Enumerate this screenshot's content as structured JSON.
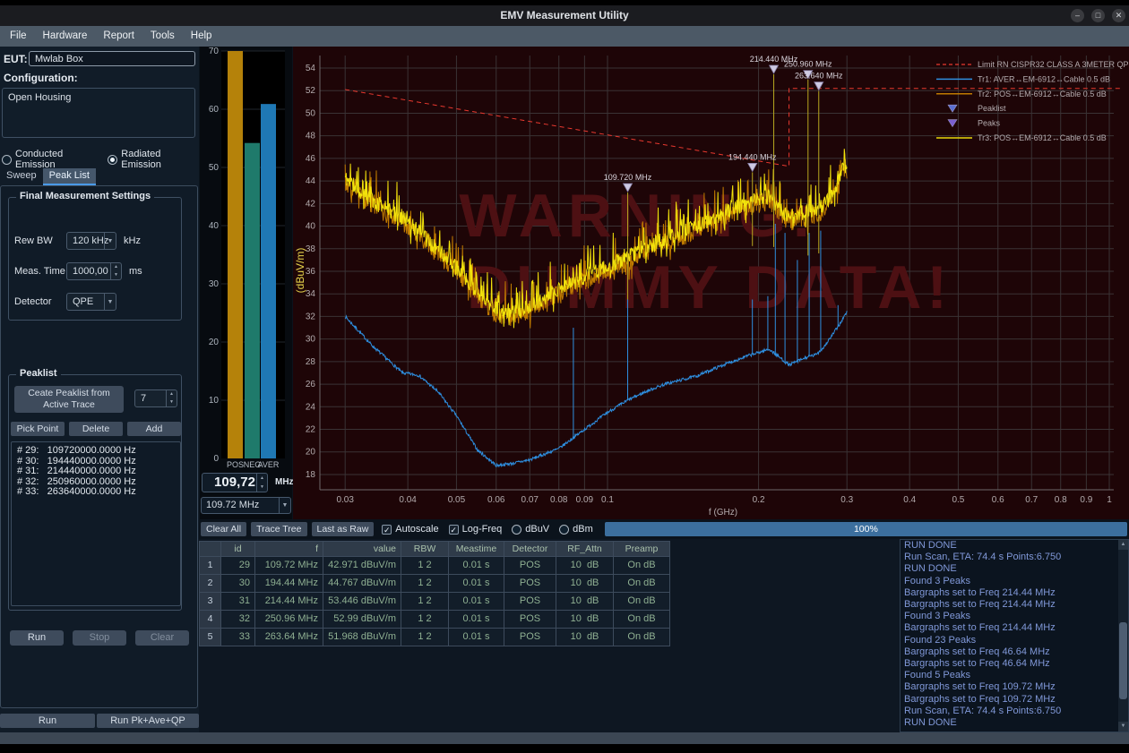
{
  "window": {
    "title": "EMV Measurement Utility",
    "minimize": "–",
    "maximize": "□",
    "close": "✕"
  },
  "menu": {
    "items": [
      "File",
      "Hardware",
      "Report",
      "Tools",
      "Help"
    ]
  },
  "left_panel": {
    "eut_label": "EUT:",
    "eut_value": "Mwlab Box",
    "configuration_label": "Configuration:",
    "configuration_value": "Open Housing",
    "radio_conducted": "Conducted Emission",
    "radio_radiated": "Radiated Emission",
    "radiated_selected": true,
    "tabs": [
      "Sweep",
      "Peak List"
    ],
    "active_tab": "Peak List",
    "final_settings": {
      "title": "Final Measurement Settings",
      "rew_bw_label": "Rew BW",
      "rew_bw_value": "120 kHz",
      "rew_bw_unit": "kHz",
      "meas_time_label": "Meas. Time",
      "meas_time_value": "1000,00",
      "meas_time_unit": "ms",
      "detector_label": "Detector",
      "detector_value": "QPE"
    },
    "peaklist": {
      "title": "Peaklist",
      "create_button": "Ceate Peaklist from\nActive Trace",
      "count_value": "7",
      "pick_point_button": "Pick Point",
      "delete_button": "Delete",
      "add_button": "Add",
      "entries": [
        "# 29:   109720000.0000 Hz",
        "# 30:   194440000.0000 Hz",
        "# 31:   214440000.0000 Hz",
        "# 32:   250960000.0000 Hz",
        "# 33:   263640000.0000 Hz"
      ]
    },
    "run_button": "Run",
    "stop_button": "Stop",
    "clear_button": "Clear",
    "bottom_run_button": "Run",
    "bottom_run_pk_button": "Run Pk+Ave+QP"
  },
  "bargraph": {
    "ymax": 70,
    "yticks": [
      0,
      10,
      20,
      30,
      40,
      50,
      60,
      70
    ],
    "bars": [
      {
        "label": "POS",
        "value": 70,
        "color": "#b5820a"
      },
      {
        "label": "NEG",
        "value": 54.2,
        "color": "#1f7a6b"
      },
      {
        "label": "AVER",
        "value": 60.9,
        "color": "#1f78b4"
      }
    ],
    "freq_spin_value": "109,72",
    "freq_spin_unit": "MHz",
    "freq_dropdown_value": "109.72 MHz"
  },
  "chart_data": {
    "type": "line",
    "xlabel": "f (GHz)",
    "ylabel": "(dBuV/m)",
    "xscale": "log",
    "xlim": [
      0.028,
      1.05
    ],
    "ylim": [
      16.6,
      55.3
    ],
    "xticks": [
      0.03,
      0.04,
      0.05,
      0.06,
      0.07,
      0.08,
      0.09,
      0.1,
      0.2,
      0.3,
      0.4,
      0.5,
      0.6,
      0.7,
      0.8,
      0.9,
      1
    ],
    "yticks": [
      18,
      20,
      22,
      24,
      26,
      28,
      30,
      32,
      34,
      36,
      38,
      40,
      42,
      44,
      46,
      48,
      50,
      52,
      54
    ],
    "watermark_line1": "WARNING:",
    "watermark_line2": "DUMMY DATA!",
    "limit": {
      "label": "Limit RN CISPR32 CLASS A 3METER QP FAR",
      "color": "#e8392f",
      "points_ghz_dbuv": [
        [
          0.03,
          52.1
        ],
        [
          0.23,
          45.3
        ],
        [
          0.23,
          52.2
        ],
        [
          1.05,
          52.2
        ]
      ]
    },
    "series": [
      {
        "name": "Tr1: AVER↔EM-6912↔Cable 0.5 dB",
        "color": "#2e8fe0",
        "noise_db": 0.28,
        "seed": 7,
        "anchors_ghz_dbuv": [
          [
            0.03,
            32
          ],
          [
            0.034,
            29.4
          ],
          [
            0.039,
            27
          ],
          [
            0.042,
            26.8
          ],
          [
            0.046,
            25.3
          ],
          [
            0.05,
            23.2
          ],
          [
            0.055,
            20.2
          ],
          [
            0.06,
            18.8
          ],
          [
            0.065,
            19.0
          ],
          [
            0.07,
            19.3
          ],
          [
            0.08,
            20.3
          ],
          [
            0.09,
            22.0
          ],
          [
            0.1,
            23.5
          ],
          [
            0.11,
            24.6
          ],
          [
            0.12,
            25.4
          ],
          [
            0.13,
            26.0
          ],
          [
            0.15,
            26.7
          ],
          [
            0.17,
            27.7
          ],
          [
            0.19,
            28.5
          ],
          [
            0.2,
            28.8
          ],
          [
            0.21,
            29.1
          ],
          [
            0.22,
            28.4
          ],
          [
            0.23,
            27.7
          ],
          [
            0.25,
            28.4
          ],
          [
            0.26,
            28.6
          ],
          [
            0.27,
            29.3
          ],
          [
            0.28,
            30.3
          ],
          [
            0.29,
            31.3
          ],
          [
            0.3,
            32.4
          ]
        ]
      },
      {
        "name": "Tr2: POS↔EM-6912↔Cable 0.5 dB",
        "color": "#bf7a00",
        "noise_db": 1.7,
        "seed": 3,
        "anchors_ghz_dbuv": [
          [
            0.03,
            43.9
          ],
          [
            0.033,
            42.2
          ],
          [
            0.036,
            41.2
          ],
          [
            0.04,
            40.0
          ],
          [
            0.045,
            37.9
          ],
          [
            0.05,
            36.0
          ],
          [
            0.055,
            33.8
          ],
          [
            0.06,
            32.3
          ],
          [
            0.065,
            31.9
          ],
          [
            0.07,
            32.6
          ],
          [
            0.075,
            33.3
          ],
          [
            0.08,
            34.0
          ],
          [
            0.09,
            35.1
          ],
          [
            0.1,
            36.0
          ],
          [
            0.11,
            36.9
          ],
          [
            0.12,
            37.7
          ],
          [
            0.13,
            38.5
          ],
          [
            0.15,
            39.6
          ],
          [
            0.17,
            40.7
          ],
          [
            0.19,
            41.7
          ],
          [
            0.2,
            42.0
          ],
          [
            0.21,
            42.2
          ],
          [
            0.22,
            41.2
          ],
          [
            0.23,
            40.4
          ],
          [
            0.24,
            40.6
          ],
          [
            0.25,
            41.0
          ],
          [
            0.26,
            41.0
          ],
          [
            0.27,
            41.5
          ],
          [
            0.28,
            42.2
          ],
          [
            0.285,
            42.9
          ],
          [
            0.29,
            43.8
          ],
          [
            0.295,
            44.8
          ],
          [
            0.3,
            44.4
          ]
        ]
      },
      {
        "name": "Tr3: POS↔EM-6912↔Cable 0.5 dB",
        "color": "#f2e20c",
        "noise_db": 1.4,
        "seed": 11,
        "anchors_ghz_dbuv": [
          [
            0.03,
            44.3
          ],
          [
            0.033,
            42.6
          ],
          [
            0.036,
            41.6
          ],
          [
            0.04,
            40.4
          ],
          [
            0.045,
            38.3
          ],
          [
            0.05,
            36.4
          ],
          [
            0.055,
            34.2
          ],
          [
            0.06,
            32.7
          ],
          [
            0.065,
            32.3
          ],
          [
            0.07,
            33.0
          ],
          [
            0.075,
            33.7
          ],
          [
            0.08,
            34.4
          ],
          [
            0.09,
            35.5
          ],
          [
            0.1,
            36.4
          ],
          [
            0.11,
            37.3
          ],
          [
            0.12,
            38.1
          ],
          [
            0.13,
            38.9
          ],
          [
            0.15,
            40.0
          ],
          [
            0.17,
            41.1
          ],
          [
            0.19,
            42.1
          ],
          [
            0.2,
            42.4
          ],
          [
            0.21,
            42.6
          ],
          [
            0.22,
            41.6
          ],
          [
            0.23,
            40.8
          ],
          [
            0.24,
            41.0
          ],
          [
            0.25,
            41.4
          ],
          [
            0.26,
            41.4
          ],
          [
            0.27,
            41.9
          ],
          [
            0.28,
            42.6
          ],
          [
            0.285,
            43.3
          ],
          [
            0.29,
            44.2
          ],
          [
            0.295,
            45.2
          ],
          [
            0.3,
            44.8
          ]
        ]
      }
    ],
    "tr1_spikes_ghz_dbuv": [
      [
        0.0855,
        31
      ],
      [
        0.1097,
        33.5
      ],
      [
        0.1944,
        33.5
      ],
      [
        0.2087,
        33.8
      ],
      [
        0.216,
        40.2
      ],
      [
        0.2258,
        39.4
      ],
      [
        0.239,
        37.0
      ],
      [
        0.2523,
        39.4
      ],
      [
        0.266,
        39.6
      ],
      [
        0.288,
        33.0
      ]
    ],
    "peak_markers": [
      {
        "freq_ghz": 0.10972,
        "label": "109.720 MHz",
        "dbuv": 42.971
      },
      {
        "freq_ghz": 0.19444,
        "label": "194.440 MHz",
        "dbuv": 44.767
      },
      {
        "freq_ghz": 0.21444,
        "label": "214.440 MHz",
        "dbuv": 53.446
      },
      {
        "freq_ghz": 0.25096,
        "label": "250.960 MHz",
        "dbuv": 52.99
      },
      {
        "freq_ghz": 0.26364,
        "label": "263.640 MHz",
        "dbuv": 51.968
      }
    ],
    "legend": [
      {
        "marker": "dash",
        "color": "#e8392f",
        "label": "Limit RN CISPR32 CLASS A 3METER QP FAR"
      },
      {
        "marker": "line",
        "color": "#2e8fe0",
        "label": "Tr1: AVER↔EM-6912↔Cable 0.5 dB"
      },
      {
        "marker": "line",
        "color": "#bf7a00",
        "label": "Tr2: POS↔EM-6912↔Cable 0.5 dB"
      },
      {
        "marker": "triangle",
        "color": "#5a6fd0",
        "label": "Peaklist"
      },
      {
        "marker": "triangle",
        "color": "#7a5fd0",
        "label": "Peaks"
      },
      {
        "marker": "line",
        "color": "#e8d80a",
        "label": "Tr3: POS↔EM-6912↔Cable 0.5 dB"
      }
    ]
  },
  "toolbar": {
    "clear_all": "Clear All",
    "trace_tree": "Trace Tree",
    "last_as_raw": "Last as Raw",
    "autoscale": "Autoscale",
    "autoscale_checked": true,
    "log_freq": "Log-Freq",
    "log_freq_checked": true,
    "dbuv": "dBuV",
    "dbuv_selected": false,
    "dbm": "dBm",
    "dbm_selected": false,
    "progress": "100%"
  },
  "table": {
    "columns": [
      "id",
      "f",
      "value",
      "RBW",
      "Meastime",
      "Detector",
      "RF_Attn",
      "Preamp"
    ],
    "rows": [
      [
        "29",
        "109.72 MHz",
        "42.971 dBuV/m",
        "1 2",
        "0.01 s",
        "POS",
        "10  dB",
        "On dB"
      ],
      [
        "30",
        "194.44 MHz",
        "44.767 dBuV/m",
        "1 2",
        "0.01 s",
        "POS",
        "10  dB",
        "On dB"
      ],
      [
        "31",
        "214.44 MHz",
        "53.446 dBuV/m",
        "1 2",
        "0.01 s",
        "POS",
        "10  dB",
        "On dB"
      ],
      [
        "32",
        "250.96 MHz",
        "52.99 dBuV/m",
        "1 2",
        "0.01 s",
        "POS",
        "10  dB",
        "On dB"
      ],
      [
        "33",
        "263.64 MHz",
        "51.968 dBuV/m",
        "1 2",
        "0.01 s",
        "POS",
        "10  dB",
        "On dB"
      ]
    ]
  },
  "log": {
    "lines": [
      "RUN DONE",
      "Run Scan, ETA: 74.4 s Points:6.750",
      "RUN DONE",
      "Found 3 Peaks",
      "Bargraphs set to Freq 214.44 MHz",
      "Bargraphs set to Freq 214.44 MHz",
      "Found 3 Peaks",
      "Bargraphs set to Freq 214.44 MHz",
      "Found 23 Peaks",
      "Bargraphs set to Freq 46.64 MHz",
      "Bargraphs set to Freq 46.64 MHz",
      "Found 5 Peaks",
      "Bargraphs set to Freq 109.72 MHz",
      "Bargraphs set to Freq 109.72 MHz",
      "Run Scan, ETA: 74.4 s Points:6.750",
      "RUN DONE"
    ]
  }
}
